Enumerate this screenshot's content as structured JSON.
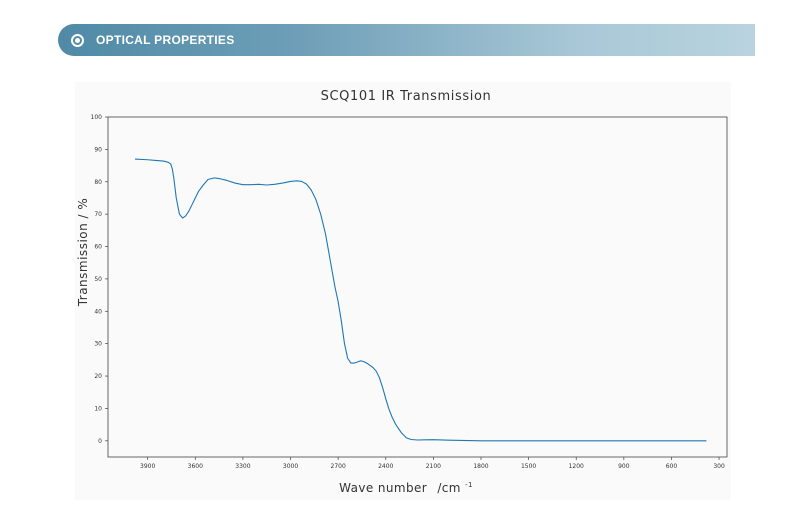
{
  "header": {
    "icon": "radio-dot-icon",
    "title": "OPTICAL PROPERTIES",
    "gradient_colors": [
      "#4f8aa6",
      "#b9d3df"
    ]
  },
  "chart_data": {
    "type": "line",
    "title": "SCQ101 IR Transmission",
    "xlabel": "Wave number",
    "xlabel_unit": "/cm",
    "xlabel_unit_exponent": "-1",
    "ylabel": "Transmission / %",
    "xlim": [
      4150,
      250
    ],
    "ylim": [
      -5,
      100
    ],
    "x_reversed": true,
    "xticks": [
      3900,
      3600,
      3300,
      3000,
      2700,
      2400,
      2100,
      1800,
      1500,
      1200,
      900,
      600,
      300
    ],
    "yticks": [
      0,
      10,
      20,
      30,
      40,
      50,
      60,
      70,
      80,
      90,
      100
    ],
    "grid": false,
    "line_color": "#1f77b4",
    "series": [
      {
        "x": [
          3980,
          3900,
          3850,
          3800,
          3770,
          3755,
          3745,
          3735,
          3720,
          3700,
          3680,
          3660,
          3640,
          3620,
          3600,
          3580,
          3550,
          3520,
          3480,
          3450,
          3400,
          3350,
          3300,
          3250,
          3200,
          3150,
          3100,
          3050,
          3000,
          2960,
          2930,
          2900,
          2870,
          2840,
          2810,
          2780,
          2760,
          2740,
          2720,
          2700,
          2680,
          2660,
          2640,
          2620,
          2600,
          2580,
          2560,
          2540,
          2520,
          2500,
          2480,
          2460,
          2440,
          2420,
          2400,
          2380,
          2360,
          2340,
          2320,
          2300,
          2270,
          2240,
          2200,
          2150,
          2100,
          2000,
          1800,
          1500,
          1200,
          900,
          600,
          500,
          380
        ],
        "y": [
          87,
          86.8,
          86.6,
          86.4,
          86,
          85.5,
          84,
          81,
          75,
          70,
          68.8,
          69.5,
          71,
          73,
          75,
          77,
          79,
          80.7,
          81.2,
          81,
          80.4,
          79.6,
          79.1,
          79.1,
          79.2,
          79,
          79.2,
          79.6,
          80.1,
          80.3,
          80.1,
          79.3,
          77.5,
          74.5,
          70,
          64,
          58.5,
          53,
          47.5,
          43,
          37,
          30,
          25.5,
          24,
          24,
          24.3,
          24.7,
          24.5,
          24,
          23.3,
          22.6,
          21.5,
          19.5,
          16.5,
          13,
          9.8,
          7.3,
          5.3,
          3.8,
          2.4,
          0.9,
          0.4,
          0.25,
          0.3,
          0.35,
          0.2,
          0,
          0,
          0,
          0,
          0,
          0,
          0
        ]
      }
    ]
  }
}
